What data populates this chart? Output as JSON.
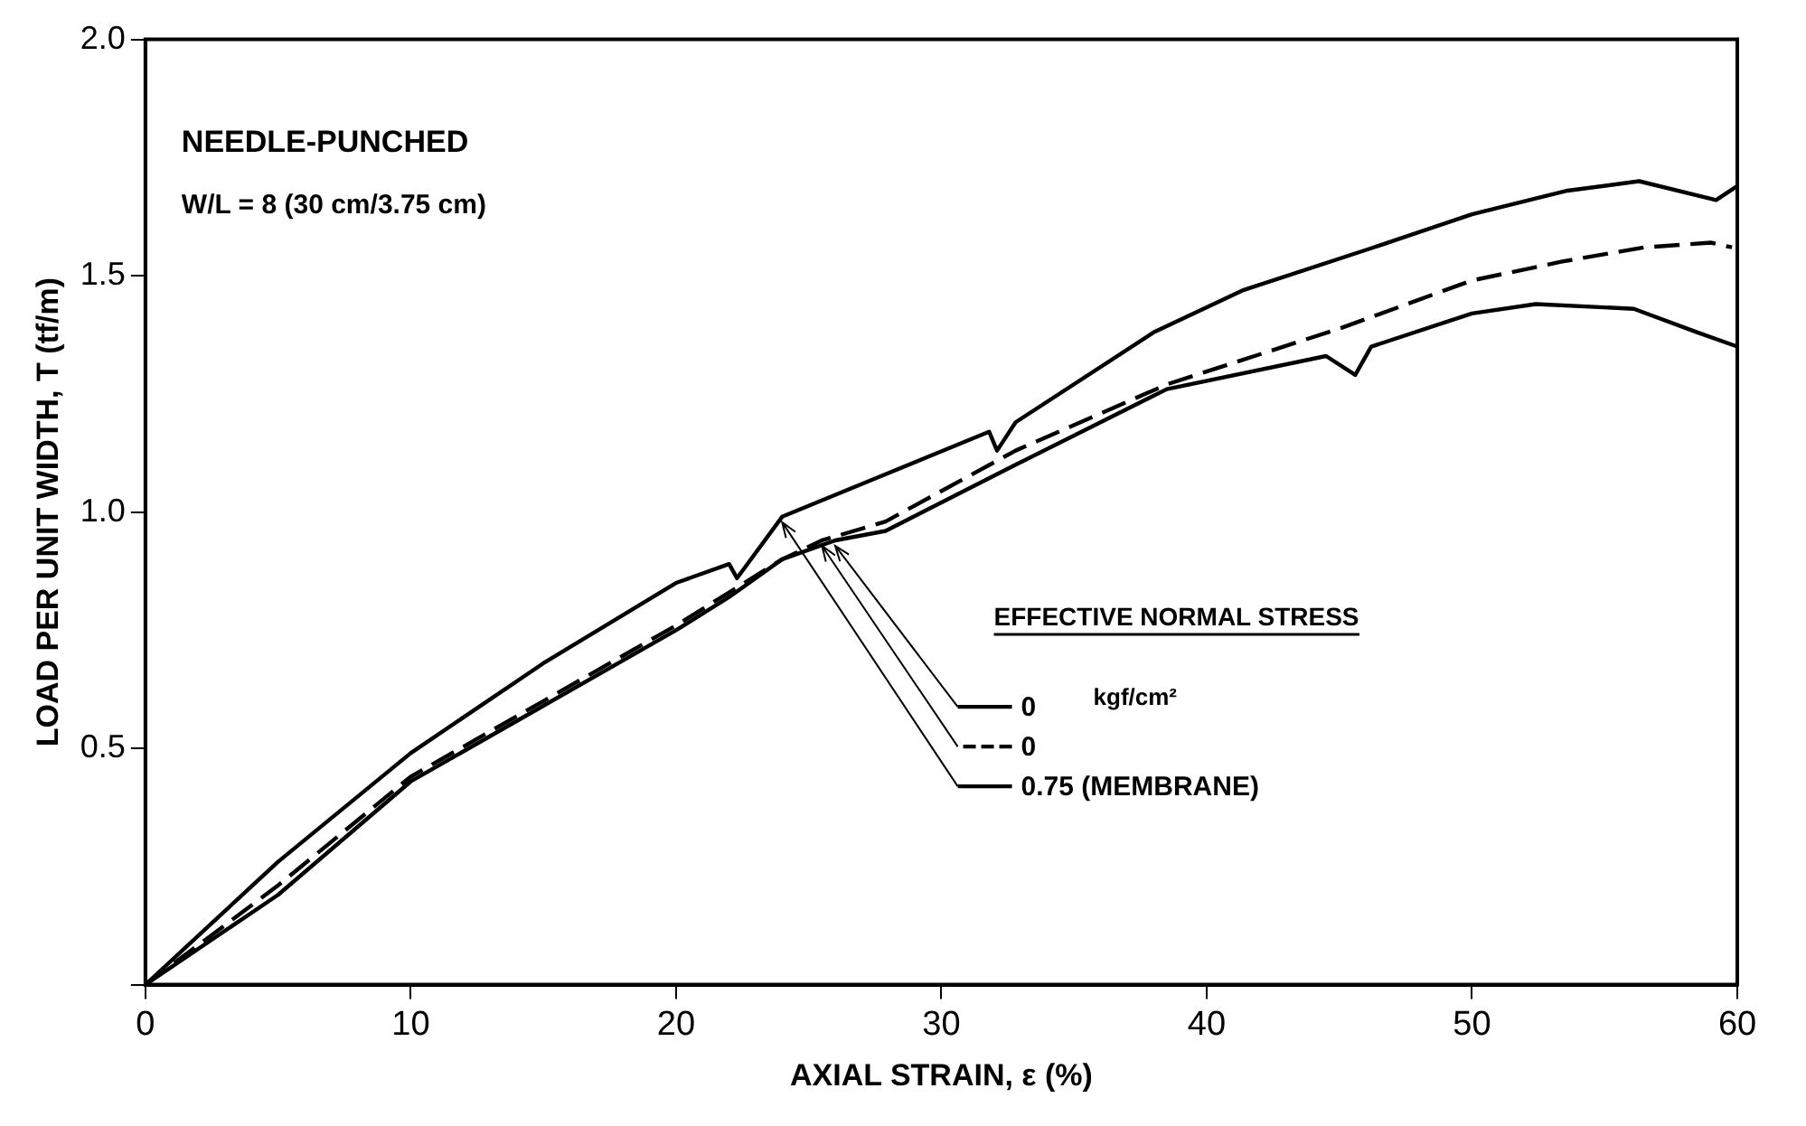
{
  "chart_data": {
    "type": "line",
    "xlabel": "AXIAL STRAIN, ε (%)",
    "ylabel": "LOAD PER UNIT WIDTH, T (tf/m)",
    "legend_title": "EFFECTIVE NORMAL STRESS",
    "annotations": [
      "NEEDLE-PUNCHED",
      "W/L = 8 (30 cm/3.75 cm)",
      "kgf/cm²"
    ],
    "xlim": [
      0,
      60
    ],
    "xticks": [
      0,
      10,
      20,
      30,
      40,
      50,
      60
    ],
    "ylim": [
      0,
      2
    ],
    "yticks": [
      {
        "value": 0,
        "label": null
      },
      {
        "value": 0.5,
        "label": "0.5"
      },
      {
        "value": 1,
        "label": "1.0"
      },
      {
        "value": 1.5,
        "label": "1.5"
      },
      {
        "value": 2,
        "label": "2.0"
      }
    ],
    "grid": false,
    "legend": "right",
    "marker": "none",
    "series": [
      {
        "name": "0",
        "color": "#000000",
        "line_style": "solid",
        "x": [
          0,
          5,
          10,
          15,
          20,
          22,
          24,
          26,
          27.9,
          32.8,
          38.5,
          44.5,
          45.6,
          46.2,
          50,
          52.4,
          56.1,
          58.5,
          60
        ],
        "values": [
          0,
          0.19,
          0.43,
          0.59,
          0.75,
          0.82,
          0.9,
          0.94,
          0.96,
          1.1,
          1.26,
          1.33,
          1.29,
          1.35,
          1.42,
          1.44,
          1.43,
          1.38,
          1.35
        ]
      },
      {
        "name": "0",
        "color": "#000000",
        "line_style": "dashed",
        "x": [
          0,
          5,
          10,
          15,
          20,
          22,
          24,
          25.5,
          27.9,
          32.8,
          38.5,
          45.1,
          50,
          53.4,
          56.5,
          59,
          59.8
        ],
        "values": [
          0,
          0.21,
          0.44,
          0.6,
          0.76,
          0.83,
          0.9,
          0.94,
          0.98,
          1.13,
          1.27,
          1.39,
          1.49,
          1.53,
          1.56,
          1.57,
          1.56
        ]
      },
      {
        "name": "0.75 (MEMBRANE)",
        "color": "#000000",
        "line_style": "solid",
        "x": [
          0,
          5,
          10,
          15,
          20,
          22,
          22.3,
          24,
          27.9,
          31.8,
          32.1,
          32.8,
          38,
          41.4,
          46.3,
          50,
          53.6,
          56.3,
          59.2,
          60
        ],
        "values": [
          0,
          0.26,
          0.49,
          0.68,
          0.85,
          0.89,
          0.86,
          0.99,
          1.08,
          1.17,
          1.13,
          1.19,
          1.38,
          1.47,
          1.56,
          1.63,
          1.68,
          1.7,
          1.66,
          1.69
        ]
      }
    ]
  }
}
